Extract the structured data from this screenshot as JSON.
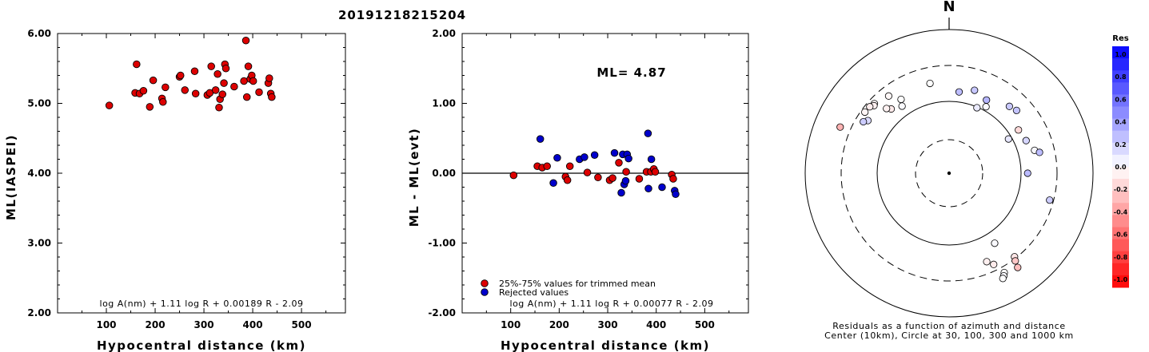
{
  "title": "20191218215204",
  "chart_data": [
    {
      "type": "scatter",
      "xlabel": "Hypocentral distance (km)",
      "ylabel": "ML(IASPEI)",
      "xlim": [
        0,
        590
      ],
      "ylim": [
        2.0,
        6.0
      ],
      "xticks": [
        "100",
        "200",
        "300",
        "400",
        "500"
      ],
      "yticks": [
        "2.00",
        "3.00",
        "4.00",
        "5.00",
        "6.00"
      ],
      "formula": "log A(nm) + 1.11 log R + 0.00189 R - 2.09",
      "series": [
        {
          "color": "#dd0000",
          "points": [
            [
              106,
              4.97
            ],
            [
              159,
              5.15
            ],
            [
              162,
              5.56
            ],
            [
              168,
              5.14
            ],
            [
              176,
              5.18
            ],
            [
              189,
              4.95
            ],
            [
              196,
              5.33
            ],
            [
              214,
              5.07
            ],
            [
              216,
              5.02
            ],
            [
              221,
              5.23
            ],
            [
              250,
              5.38
            ],
            [
              252,
              5.4
            ],
            [
              261,
              5.19
            ],
            [
              281,
              5.46
            ],
            [
              283,
              5.14
            ],
            [
              307,
              5.12
            ],
            [
              312,
              5.15
            ],
            [
              315,
              5.53
            ],
            [
              324,
              5.19
            ],
            [
              328,
              5.42
            ],
            [
              331,
              4.94
            ],
            [
              333,
              5.06
            ],
            [
              338,
              5.13
            ],
            [
              341,
              5.29
            ],
            [
              343,
              5.56
            ],
            [
              345,
              5.5
            ],
            [
              362,
              5.24
            ],
            [
              382,
              5.32
            ],
            [
              386,
              5.9
            ],
            [
              388,
              5.09
            ],
            [
              391,
              5.53
            ],
            [
              395,
              5.35
            ],
            [
              398,
              5.4
            ],
            [
              401,
              5.32
            ],
            [
              413,
              5.16
            ],
            [
              432,
              5.29
            ],
            [
              434,
              5.36
            ],
            [
              437,
              5.14
            ],
            [
              439,
              5.09
            ]
          ]
        }
      ]
    },
    {
      "type": "scatter",
      "xlabel": "Hypocentral distance (km)",
      "ylabel": "ML - ML(evt)",
      "xlim": [
        0,
        590
      ],
      "ylim": [
        -2.0,
        2.0
      ],
      "xticks": [
        "100",
        "200",
        "300",
        "400",
        "500"
      ],
      "yticks": [
        "-2.00",
        "-1.00",
        "0.00",
        "1.00",
        "2.00"
      ],
      "annotation": "ML= 4.87",
      "formula": "log A(nm) + 1.11 log R + 0.00077 R - 2.09",
      "series": [
        {
          "name": "25%-75% values for trimmed mean",
          "color": "#dd0000",
          "points": [
            [
              106,
              -0.03
            ],
            [
              155,
              0.1
            ],
            [
              165,
              0.08
            ],
            [
              175,
              0.1
            ],
            [
              213,
              -0.05
            ],
            [
              217,
              -0.1
            ],
            [
              222,
              0.1
            ],
            [
              258,
              0.01
            ],
            [
              280,
              -0.06
            ],
            [
              304,
              -0.1
            ],
            [
              310,
              -0.07
            ],
            [
              323,
              0.15
            ],
            [
              338,
              0.02
            ],
            [
              365,
              -0.08
            ],
            [
              380,
              0.02
            ],
            [
              389,
              0.02
            ],
            [
              395,
              0.06
            ],
            [
              398,
              0.02
            ],
            [
              432,
              -0.02
            ],
            [
              435,
              -0.08
            ]
          ]
        },
        {
          "name": "Rejected values",
          "color": "#0000cc",
          "points": [
            [
              161,
              0.49
            ],
            [
              188,
              -0.14
            ],
            [
              196,
              0.22
            ],
            [
              242,
              0.2
            ],
            [
              252,
              0.23
            ],
            [
              273,
              0.26
            ],
            [
              314,
              0.29
            ],
            [
              328,
              -0.28
            ],
            [
              331,
              0.27
            ],
            [
              334,
              -0.16
            ],
            [
              337,
              -0.11
            ],
            [
              340,
              0.27
            ],
            [
              343,
              0.21
            ],
            [
              383,
              0.57
            ],
            [
              384,
              -0.22
            ],
            [
              390,
              0.2
            ],
            [
              412,
              -0.2
            ],
            [
              438,
              -0.25
            ],
            [
              440,
              -0.3
            ]
          ]
        }
      ]
    },
    {
      "type": "polar-scatter",
      "north_label": "N",
      "caption": [
        "Residuals as a function of azimuth and distance",
        "Center (10km), Circle at 30, 100, 300 and 1000 km"
      ],
      "colorbar": {
        "title": "Res",
        "ticks": [
          "1.0",
          "0.8",
          "0.6",
          "0.4",
          "0.2",
          "0.0",
          "-0.2",
          "-0.4",
          "-0.6",
          "-0.8",
          "-1.0"
        ]
      },
      "points": [
        {
          "az": 0,
          "dist": 0,
          "res": 0.0,
          "dot": true
        },
        {
          "az": 348,
          "dist": 342,
          "res": 0.0
        },
        {
          "az": 327,
          "dist": 328,
          "res": 0.0
        },
        {
          "az": 325,
          "dist": 305,
          "res": 0.02
        },
        {
          "az": 322,
          "dist": 365,
          "res": -0.03
        },
        {
          "az": 318,
          "dist": 322,
          "res": -0.08
        },
        {
          "az": 316,
          "dist": 335,
          "res": -0.05
        },
        {
          "az": 313,
          "dist": 380,
          "res": -0.02
        },
        {
          "az": 312,
          "dist": 376,
          "res": -0.06
        },
        {
          "az": 310,
          "dist": 385,
          "res": -0.07
        },
        {
          "az": 306,
          "dist": 387,
          "res": -0.04
        },
        {
          "az": 303,
          "dist": 360,
          "res": 0.14
        },
        {
          "az": 301,
          "dist": 372,
          "res": 0.2
        },
        {
          "az": 293,
          "dist": 440,
          "res": -0.3
        },
        {
          "az": 7,
          "dist": 305,
          "res": 0.26
        },
        {
          "az": 17,
          "dist": 323,
          "res": 0.22
        },
        {
          "az": 23,
          "dist": 265,
          "res": 0.08
        },
        {
          "az": 27,
          "dist": 306,
          "res": 0.29
        },
        {
          "az": 29,
          "dist": 283,
          "res": 0.02
        },
        {
          "az": 42,
          "dist": 335,
          "res": 0.21
        },
        {
          "az": 47,
          "dist": 343,
          "res": 0.23
        },
        {
          "az": 58,
          "dist": 304,
          "res": -0.15
        },
        {
          "az": 60,
          "dist": 255,
          "res": 0.1
        },
        {
          "az": 67,
          "dist": 311,
          "res": 0.16
        },
        {
          "az": 75,
          "dist": 329,
          "res": 0.03
        },
        {
          "az": 77,
          "dist": 345,
          "res": 0.26
        },
        {
          "az": 90,
          "dist": 292,
          "res": 0.27
        },
        {
          "az": 105,
          "dist": 387,
          "res": 0.2
        },
        {
          "az": 142,
          "dist": 395,
          "res": -0.1
        },
        {
          "az": 143,
          "dist": 409,
          "res": -0.22
        },
        {
          "az": 144,
          "dist": 434,
          "res": -0.25
        },
        {
          "az": 147,
          "dist": 311,
          "res": 0.02
        },
        {
          "az": 151,
          "dist": 423,
          "res": 0.0
        },
        {
          "az": 152,
          "dist": 433,
          "res": 0.02
        },
        {
          "az": 153,
          "dist": 440,
          "res": 0.0
        },
        {
          "az": 157,
          "dist": 358,
          "res": -0.06
        },
        {
          "az": 154,
          "dist": 378,
          "res": -0.08
        }
      ]
    }
  ]
}
